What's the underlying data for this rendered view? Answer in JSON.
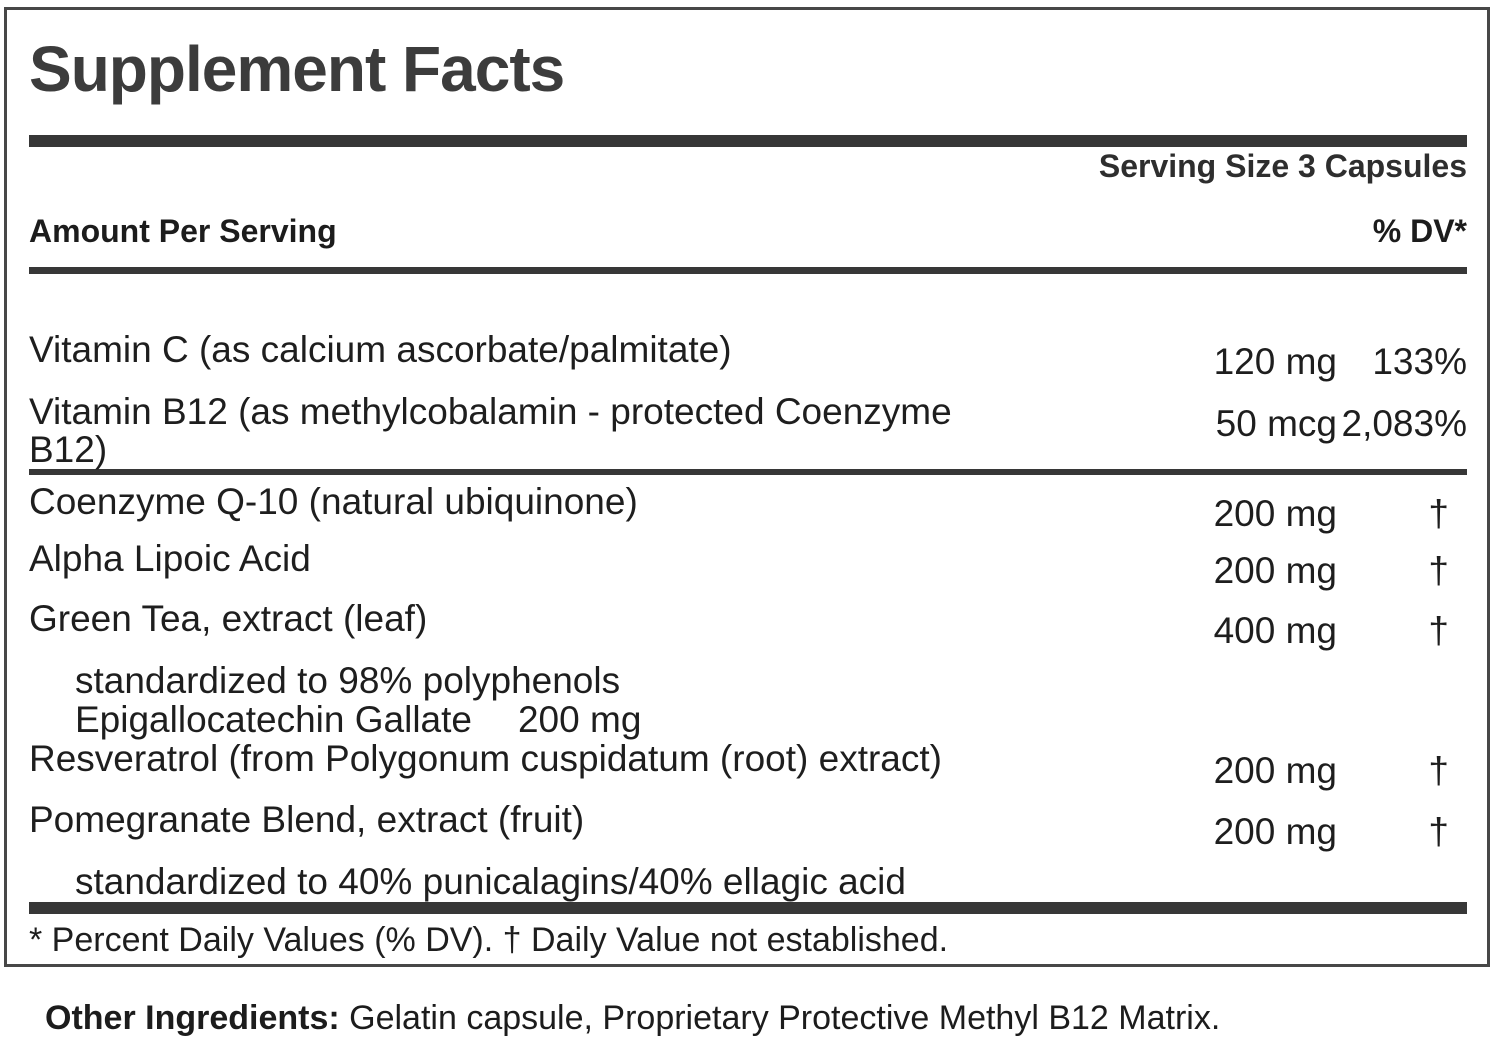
{
  "panel": {
    "title": "Supplement Facts",
    "serving_size": "Serving Size 3 Capsules",
    "headers": {
      "amount_per_serving": "Amount Per Serving",
      "percent_dv": "% DV*"
    },
    "rows": [
      {
        "name": "Vitamin C (as calcium ascorbate/palmitate)",
        "amount": "120 mg",
        "dv": "133%"
      },
      {
        "name": "Vitamin B12 (as methylcobalamin - protected Coenzyme B12)",
        "amount": "50 mcg",
        "dv": "2,083%"
      },
      {
        "name": "Coenzyme Q-10 (natural ubiquinone)",
        "amount": "200 mg",
        "dv": "†"
      },
      {
        "name": "Alpha Lipoic Acid",
        "amount": "200 mg",
        "dv": "†"
      },
      {
        "name": "Green Tea, extract (leaf)",
        "amount": "400 mg",
        "dv": "†"
      },
      {
        "sub": "standardized to 98% polyphenols"
      },
      {
        "sub": "Epigallocatechin Gallate",
        "sub_amount": "200 mg"
      },
      {
        "name": "Resveratrol (from Polygonum cuspidatum (root) extract)",
        "amount": "200 mg",
        "dv": "†"
      },
      {
        "name": "Pomegranate Blend, extract (fruit)",
        "amount": "200 mg",
        "dv": "†"
      },
      {
        "sub": "standardized to 40% punicalagins/40% ellagic acid"
      }
    ],
    "footnote": "* Percent Daily Values (% DV). † Daily Value not established."
  },
  "other_ingredients": {
    "label": "Other Ingredients:",
    "text": " Gelatin capsule, Proprietary Protective Methyl B12 Matrix."
  },
  "colors": {
    "bar": "#373737",
    "border": "#474747",
    "title_text": "#3c3c3c",
    "body_text": "#1e1e1e"
  }
}
